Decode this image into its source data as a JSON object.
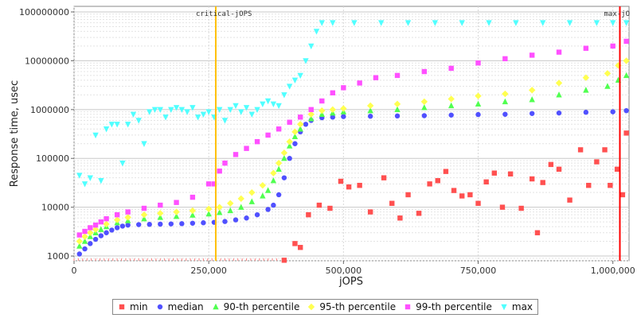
{
  "chart_data": {
    "type": "scatter",
    "title": "",
    "xlabel": "jOPS",
    "ylabel": "Response time, usec",
    "x_scale": "linear",
    "y_scale": "log",
    "xlim": [
      0,
      1030000
    ],
    "ylim": [
      800,
      130000000
    ],
    "x_ticks": [
      0,
      250000,
      500000,
      750000,
      1000000
    ],
    "x_tick_labels": [
      "0",
      "250,000",
      "500,000",
      "750,000",
      "1,000,000"
    ],
    "y_ticks": [
      1000,
      10000,
      100000,
      1000000,
      10000000,
      100000000
    ],
    "y_tick_labels": [
      "1000",
      "10000",
      "100000",
      "1000000",
      "10000000",
      "100000000"
    ],
    "grid": true,
    "legend_position": "bottom",
    "markers": [
      {
        "name": "critical-jOPS",
        "x": 263000,
        "color": "#ffc000"
      },
      {
        "name": "max-jOPS",
        "x": 1013000,
        "color": "#ff0000",
        "label_text": "max-jO"
      }
    ],
    "series": [
      {
        "name": "min",
        "color": "#ff5050",
        "shape": "square",
        "points": [
          [
            390000,
            820
          ],
          [
            410000,
            1800
          ],
          [
            420000,
            1500
          ],
          [
            435000,
            7000
          ],
          [
            455000,
            11000
          ],
          [
            475000,
            9500
          ],
          [
            495000,
            34000
          ],
          [
            510000,
            26000
          ],
          [
            530000,
            28000
          ],
          [
            550000,
            8000
          ],
          [
            575000,
            40000
          ],
          [
            590000,
            12000
          ],
          [
            605000,
            6000
          ],
          [
            620000,
            18000
          ],
          [
            640000,
            7500
          ],
          [
            660000,
            30000
          ],
          [
            675000,
            35000
          ],
          [
            690000,
            54000
          ],
          [
            705000,
            22000
          ],
          [
            720000,
            17000
          ],
          [
            735000,
            18000
          ],
          [
            750000,
            12000
          ],
          [
            765000,
            33000
          ],
          [
            780000,
            50000
          ],
          [
            795000,
            10000
          ],
          [
            810000,
            48000
          ],
          [
            830000,
            9500
          ],
          [
            850000,
            38000
          ],
          [
            860000,
            3000
          ],
          [
            870000,
            32000
          ],
          [
            885000,
            75000
          ],
          [
            900000,
            60000
          ],
          [
            920000,
            14000
          ],
          [
            940000,
            150000
          ],
          [
            955000,
            28000
          ],
          [
            970000,
            85000
          ],
          [
            985000,
            150000
          ],
          [
            995000,
            28000
          ],
          [
            1008000,
            60000
          ],
          [
            1018000,
            18000
          ],
          [
            1025000,
            330000
          ]
        ]
      },
      {
        "name": "median",
        "color": "#5050ff",
        "shape": "circle",
        "points": [
          [
            10000,
            1100
          ],
          [
            20000,
            1400
          ],
          [
            30000,
            1800
          ],
          [
            40000,
            2200
          ],
          [
            50000,
            2600
          ],
          [
            60000,
            3000
          ],
          [
            70000,
            3400
          ],
          [
            80000,
            3800
          ],
          [
            90000,
            4100
          ],
          [
            100000,
            4300
          ],
          [
            120000,
            4400
          ],
          [
            140000,
            4450
          ],
          [
            160000,
            4500
          ],
          [
            180000,
            4550
          ],
          [
            200000,
            4600
          ],
          [
            220000,
            4700
          ],
          [
            240000,
            4800
          ],
          [
            260000,
            4900
          ],
          [
            280000,
            5100
          ],
          [
            300000,
            5500
          ],
          [
            320000,
            6000
          ],
          [
            340000,
            7000
          ],
          [
            360000,
            9000
          ],
          [
            370000,
            11000
          ],
          [
            380000,
            18000
          ],
          [
            390000,
            40000
          ],
          [
            400000,
            100000
          ],
          [
            410000,
            200000
          ],
          [
            420000,
            350000
          ],
          [
            430000,
            500000
          ],
          [
            440000,
            600000
          ],
          [
            460000,
            680000
          ],
          [
            480000,
            700000
          ],
          [
            500000,
            720000
          ],
          [
            550000,
            730000
          ],
          [
            600000,
            740000
          ],
          [
            650000,
            750000
          ],
          [
            700000,
            770000
          ],
          [
            750000,
            790000
          ],
          [
            800000,
            800000
          ],
          [
            850000,
            830000
          ],
          [
            900000,
            850000
          ],
          [
            950000,
            880000
          ],
          [
            1000000,
            900000
          ],
          [
            1025000,
            950000
          ]
        ]
      },
      {
        "name": "90-th percentile",
        "color": "#50ff50",
        "shape": "triangle",
        "points": [
          [
            10000,
            1600
          ],
          [
            20000,
            2000
          ],
          [
            30000,
            2500
          ],
          [
            40000,
            3000
          ],
          [
            50000,
            3500
          ],
          [
            60000,
            4000
          ],
          [
            80000,
            4800
          ],
          [
            100000,
            5300
          ],
          [
            130000,
            5800
          ],
          [
            160000,
            6200
          ],
          [
            190000,
            6500
          ],
          [
            220000,
            6900
          ],
          [
            250000,
            7300
          ],
          [
            270000,
            7800
          ],
          [
            290000,
            8500
          ],
          [
            310000,
            10000
          ],
          [
            330000,
            13000
          ],
          [
            350000,
            17000
          ],
          [
            360000,
            22000
          ],
          [
            370000,
            35000
          ],
          [
            380000,
            60000
          ],
          [
            390000,
            100000
          ],
          [
            400000,
            180000
          ],
          [
            410000,
            280000
          ],
          [
            420000,
            400000
          ],
          [
            440000,
            650000
          ],
          [
            460000,
            800000
          ],
          [
            480000,
            850000
          ],
          [
            500000,
            900000
          ],
          [
            550000,
            950000
          ],
          [
            600000,
            1000000
          ],
          [
            650000,
            1100000
          ],
          [
            700000,
            1200000
          ],
          [
            750000,
            1300000
          ],
          [
            800000,
            1450000
          ],
          [
            850000,
            1600000
          ],
          [
            900000,
            2000000
          ],
          [
            950000,
            2500000
          ],
          [
            990000,
            3000000
          ],
          [
            1010000,
            4000000
          ],
          [
            1025000,
            5000000
          ]
        ]
      },
      {
        "name": "95-th percentile",
        "color": "#ffff50",
        "shape": "diamond",
        "points": [
          [
            10000,
            2000
          ],
          [
            20000,
            2500
          ],
          [
            30000,
            3000
          ],
          [
            40000,
            3500
          ],
          [
            60000,
            4500
          ],
          [
            80000,
            5500
          ],
          [
            100000,
            6200
          ],
          [
            130000,
            7000
          ],
          [
            160000,
            7500
          ],
          [
            190000,
            8000
          ],
          [
            220000,
            8500
          ],
          [
            250000,
            9200
          ],
          [
            270000,
            10000
          ],
          [
            290000,
            12000
          ],
          [
            310000,
            15000
          ],
          [
            330000,
            20000
          ],
          [
            350000,
            28000
          ],
          [
            370000,
            50000
          ],
          [
            380000,
            80000
          ],
          [
            390000,
            130000
          ],
          [
            400000,
            220000
          ],
          [
            410000,
            350000
          ],
          [
            420000,
            500000
          ],
          [
            440000,
            800000
          ],
          [
            460000,
            950000
          ],
          [
            480000,
            1000000
          ],
          [
            500000,
            1050000
          ],
          [
            550000,
            1200000
          ],
          [
            600000,
            1300000
          ],
          [
            650000,
            1450000
          ],
          [
            700000,
            1650000
          ],
          [
            750000,
            1900000
          ],
          [
            800000,
            2100000
          ],
          [
            850000,
            2500000
          ],
          [
            900000,
            3500000
          ],
          [
            950000,
            4500000
          ],
          [
            990000,
            5500000
          ],
          [
            1010000,
            8000000
          ],
          [
            1025000,
            10000000
          ]
        ]
      },
      {
        "name": "99-th percentile",
        "color": "#ff50ff",
        "shape": "square",
        "points": [
          [
            10000,
            2700
          ],
          [
            20000,
            3200
          ],
          [
            30000,
            3800
          ],
          [
            40000,
            4300
          ],
          [
            50000,
            5000
          ],
          [
            60000,
            5800
          ],
          [
            80000,
            7000
          ],
          [
            100000,
            8000
          ],
          [
            130000,
            9500
          ],
          [
            160000,
            11000
          ],
          [
            190000,
            12500
          ],
          [
            220000,
            16000
          ],
          [
            250000,
            30000
          ],
          [
            260000,
            30000
          ],
          [
            270000,
            55000
          ],
          [
            280000,
            80000
          ],
          [
            300000,
            120000
          ],
          [
            320000,
            160000
          ],
          [
            340000,
            220000
          ],
          [
            360000,
            300000
          ],
          [
            380000,
            400000
          ],
          [
            400000,
            550000
          ],
          [
            420000,
            700000
          ],
          [
            440000,
            1000000
          ],
          [
            460000,
            1500000
          ],
          [
            480000,
            2200000
          ],
          [
            500000,
            2800000
          ],
          [
            530000,
            3500000
          ],
          [
            560000,
            4500000
          ],
          [
            600000,
            5000000
          ],
          [
            650000,
            6000000
          ],
          [
            700000,
            7000000
          ],
          [
            750000,
            9000000
          ],
          [
            800000,
            11000000
          ],
          [
            850000,
            13000000
          ],
          [
            900000,
            15000000
          ],
          [
            950000,
            18000000
          ],
          [
            1000000,
            20000000
          ],
          [
            1025000,
            25000000
          ]
        ]
      },
      {
        "name": "max",
        "color": "#50ffff",
        "shape": "triangle-down",
        "points": [
          [
            10000,
            45000
          ],
          [
            20000,
            30000
          ],
          [
            30000,
            40000
          ],
          [
            40000,
            300000
          ],
          [
            50000,
            35000
          ],
          [
            60000,
            400000
          ],
          [
            70000,
            500000
          ],
          [
            80000,
            500000
          ],
          [
            90000,
            80000
          ],
          [
            100000,
            500000
          ],
          [
            110000,
            800000
          ],
          [
            120000,
            600000
          ],
          [
            130000,
            200000
          ],
          [
            140000,
            900000
          ],
          [
            150000,
            1000000
          ],
          [
            160000,
            1000000
          ],
          [
            170000,
            700000
          ],
          [
            180000,
            1000000
          ],
          [
            190000,
            1100000
          ],
          [
            200000,
            1000000
          ],
          [
            210000,
            900000
          ],
          [
            220000,
            1100000
          ],
          [
            230000,
            700000
          ],
          [
            240000,
            800000
          ],
          [
            250000,
            900000
          ],
          [
            260000,
            700000
          ],
          [
            270000,
            1000000
          ],
          [
            280000,
            600000
          ],
          [
            290000,
            1000000
          ],
          [
            300000,
            1200000
          ],
          [
            310000,
            900000
          ],
          [
            320000,
            1100000
          ],
          [
            330000,
            800000
          ],
          [
            340000,
            1000000
          ],
          [
            350000,
            1300000
          ],
          [
            360000,
            1500000
          ],
          [
            370000,
            1300000
          ],
          [
            380000,
            1200000
          ],
          [
            390000,
            2000000
          ],
          [
            400000,
            3000000
          ],
          [
            410000,
            4000000
          ],
          [
            420000,
            5000000
          ],
          [
            430000,
            10000000
          ],
          [
            440000,
            20000000
          ],
          [
            450000,
            40000000
          ],
          [
            460000,
            60000000
          ],
          [
            480000,
            60000000
          ],
          [
            520000,
            60000000
          ],
          [
            570000,
            60000000
          ],
          [
            620000,
            60000000
          ],
          [
            670000,
            60000000
          ],
          [
            720000,
            60000000
          ],
          [
            770000,
            60000000
          ],
          [
            820000,
            60000000
          ],
          [
            870000,
            60000000
          ],
          [
            920000,
            60000000
          ],
          [
            970000,
            60000000
          ],
          [
            1000000,
            60000000
          ],
          [
            1025000,
            60000000
          ]
        ]
      }
    ]
  }
}
